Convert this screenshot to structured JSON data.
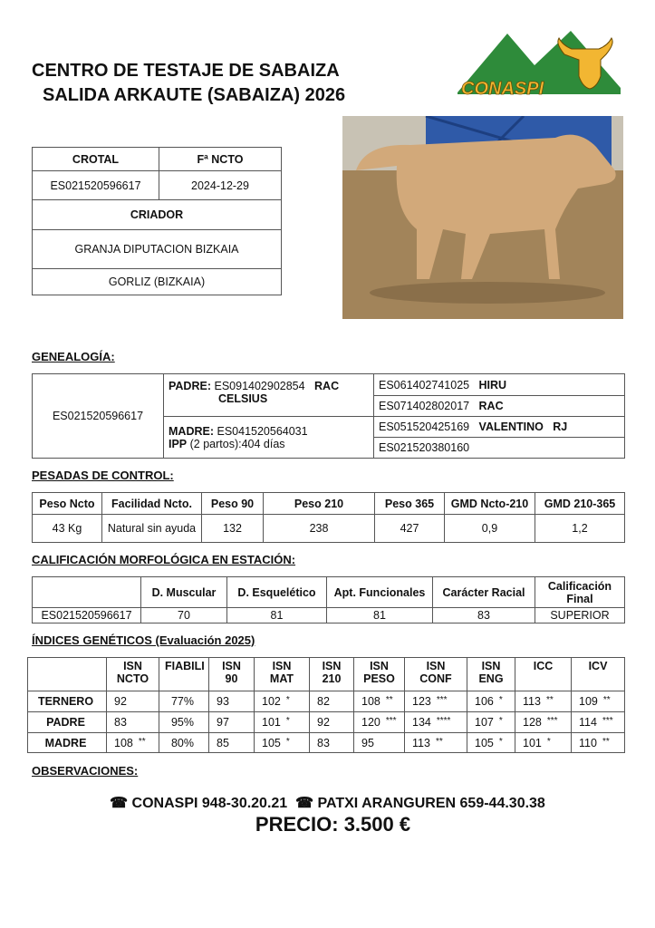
{
  "header": {
    "title1": "CENTRO DE TESTAJE DE SABAIZA",
    "title2": "SALIDA ARKAUTE (SABAIZA) 2026",
    "logo_text": "CONASPI"
  },
  "colors": {
    "logo_green": "#2e8b3a",
    "logo_yellow": "#f2b632"
  },
  "animal": {
    "crotal_label": "CROTAL",
    "fncto_label": "Fª NCTO",
    "crotal": "ES021520596617",
    "fncto": "2024-12-29",
    "criador_label": "CRIADOR",
    "criador": "GRANJA DIPUTACION BIZKAIA",
    "localidad": "GORLIZ (BIZKAIA)"
  },
  "genealogia": {
    "label": "GENEALOGÍA:",
    "animal": "ES021520596617",
    "padre_label": "PADRE:",
    "padre_id": "ES091402902854",
    "padre_name1": "RAC",
    "padre_name2": "CELSIUS",
    "madre_label": "MADRE:",
    "madre_id": "ES041520564031",
    "ipp_label": "IPP",
    "ipp_text": "(2 partos):404 días",
    "abuelos": [
      {
        "id": "ES061402741025",
        "name": "HIRU"
      },
      {
        "id": "ES071402802017",
        "name": "RAC"
      },
      {
        "id": "ES051520425169",
        "name": "VALENTINO   RJ"
      },
      {
        "id": "ES021520380160",
        "name": ""
      }
    ]
  },
  "pesadas": {
    "label": "PESADAS DE CONTROL:",
    "headers": [
      "Peso Ncto",
      "Facilidad Ncto.",
      "Peso 90",
      "Peso 210",
      "Peso 365",
      "GMD Ncto-210",
      "GMD 210-365"
    ],
    "values": [
      "43 Kg",
      "Natural sin ayuda",
      "132",
      "238",
      "427",
      "0,9",
      "1,2"
    ]
  },
  "calificacion": {
    "label": "CALIFICACIÓN MORFOLÓGICA EN ESTACIÓN:",
    "headers": [
      "",
      "D. Muscular",
      "D. Esquelético",
      "Apt. Funcionales",
      "Carácter Racial",
      "Calificación Final"
    ],
    "values": [
      "ES021520596617",
      "70",
      "81",
      "81",
      "83",
      "SUPERIOR"
    ]
  },
  "indices": {
    "label": "ÍNDICES GENÉTICOS (Evaluación 2025)",
    "headers": [
      "",
      "ISN NCTO",
      "FIABILI",
      "ISN 90",
      "ISN MAT",
      "ISN 210",
      "ISN PESO",
      "ISN CONF",
      "ISN ENG",
      "ICC",
      "ICV"
    ],
    "rows": [
      {
        "name": "TERNERO",
        "cells": [
          [
            "92",
            ""
          ],
          [
            "77%",
            ""
          ],
          [
            "93",
            ""
          ],
          [
            "102",
            "*"
          ],
          [
            "82",
            ""
          ],
          [
            "108",
            "**"
          ],
          [
            "123",
            "***"
          ],
          [
            "106",
            "*"
          ],
          [
            "113",
            "**"
          ],
          [
            "109",
            "**"
          ]
        ]
      },
      {
        "name": "PADRE",
        "cells": [
          [
            "83",
            ""
          ],
          [
            "95%",
            ""
          ],
          [
            "97",
            ""
          ],
          [
            "101",
            "*"
          ],
          [
            "92",
            ""
          ],
          [
            "120",
            "***"
          ],
          [
            "134",
            "****"
          ],
          [
            "107",
            "*"
          ],
          [
            "128",
            "***"
          ],
          [
            "114",
            "***"
          ]
        ]
      },
      {
        "name": "MADRE",
        "cells": [
          [
            "108",
            "**"
          ],
          [
            "80%",
            ""
          ],
          [
            "85",
            ""
          ],
          [
            "105",
            "*"
          ],
          [
            "83",
            ""
          ],
          [
            "95",
            ""
          ],
          [
            "113",
            "**"
          ],
          [
            "105",
            "*"
          ],
          [
            "101",
            "*"
          ],
          [
            "110",
            "**"
          ]
        ]
      }
    ]
  },
  "observaciones": {
    "label": "OBSERVACIONES:"
  },
  "contacto": {
    "phone_icon": "phone-icon",
    "text1": "CONASPI 948-30.20.21",
    "text2": "PATXI ARANGUREN 659-44.30.38"
  },
  "precio": "PRECIO: 3.500 €"
}
